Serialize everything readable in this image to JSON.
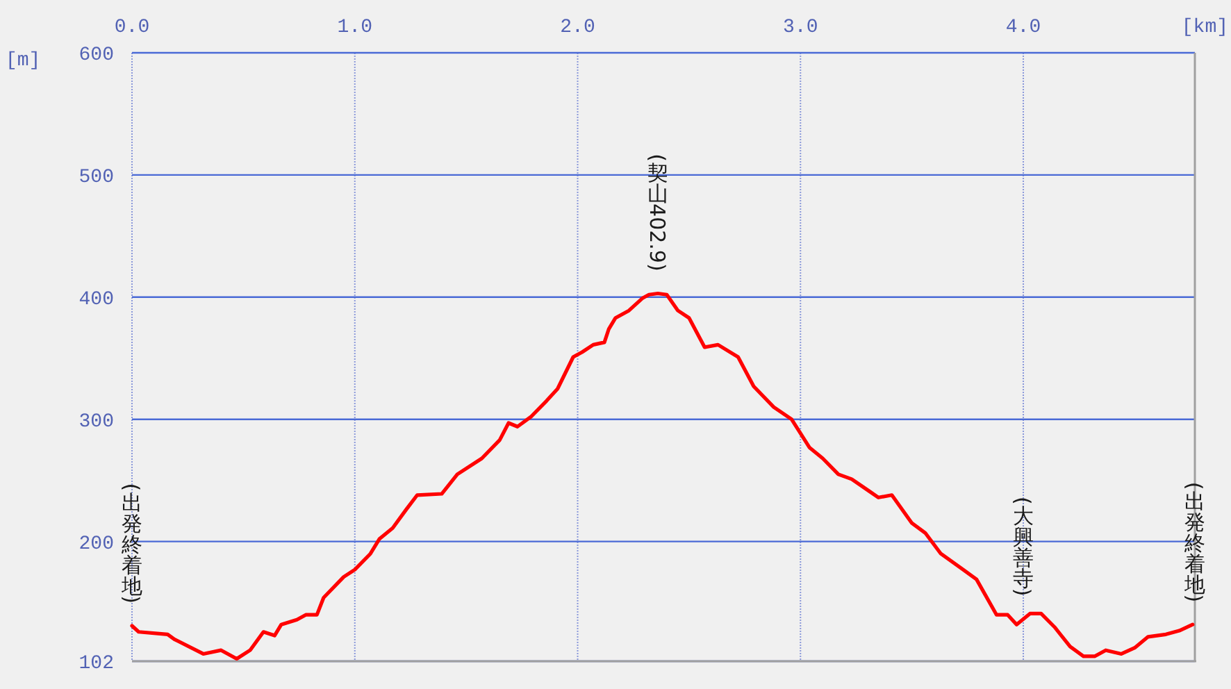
{
  "chart_data": {
    "type": "line",
    "xlabel": "[km]",
    "ylabel": "[m]",
    "x": [
      0.0,
      0.03,
      0.16,
      0.19,
      0.32,
      0.4,
      0.47,
      0.53,
      0.59,
      0.64,
      0.67,
      0.74,
      0.78,
      0.83,
      0.86,
      0.95,
      1.0,
      1.07,
      1.11,
      1.17,
      1.23,
      1.28,
      1.39,
      1.46,
      1.57,
      1.65,
      1.69,
      1.73,
      1.79,
      1.86,
      1.91,
      1.98,
      2.02,
      2.07,
      2.12,
      2.14,
      2.17,
      2.23,
      2.29,
      2.32,
      2.36,
      2.4,
      2.45,
      2.5,
      2.57,
      2.63,
      2.72,
      2.79,
      2.88,
      2.96,
      3.04,
      3.1,
      3.17,
      3.23,
      3.31,
      3.35,
      3.41,
      3.5,
      3.56,
      3.63,
      3.73,
      3.79,
      3.88,
      3.93,
      3.97,
      4.03,
      4.08,
      4.14,
      4.21,
      4.27,
      4.32,
      4.37,
      4.44,
      4.5,
      4.56,
      4.64,
      4.7,
      4.76
    ],
    "series": [
      {
        "color": "#ff0000",
        "values": [
          131,
          126,
          124,
          120,
          108,
          111,
          104,
          111,
          126,
          123,
          132,
          136,
          140,
          140,
          154,
          171,
          177,
          190,
          202,
          211,
          226,
          238,
          239,
          255,
          268,
          283,
          297,
          294,
          302,
          315,
          325,
          351,
          355,
          361,
          363,
          374,
          383,
          389,
          399,
          402,
          403,
          402,
          389,
          383,
          359,
          361,
          351,
          327,
          310,
          300,
          277,
          268,
          255,
          251,
          241,
          236,
          238,
          215,
          207,
          190,
          177,
          169,
          140,
          140,
          132,
          141,
          141,
          130,
          114,
          106,
          106,
          111,
          108,
          113,
          122,
          124,
          127,
          132
        ]
      }
    ],
    "xlim": [
      0,
      4.77
    ],
    "ylim": [
      102,
      600
    ],
    "xticks": [
      {
        "value": 0,
        "label": "0.0"
      },
      {
        "value": 1,
        "label": "1.0"
      },
      {
        "value": 2,
        "label": "2.0"
      },
      {
        "value": 3,
        "label": "3.0"
      },
      {
        "value": 4,
        "label": "4.0"
      }
    ],
    "yticks": [
      102,
      200,
      300,
      400,
      500,
      600
    ],
    "grid": true,
    "line_style": "solid",
    "annotations": [
      {
        "text": "(出発終着地)",
        "x": 0,
        "y": 131
      },
      {
        "text": "(契山402.9)",
        "x": 2.36,
        "y": 402.9
      },
      {
        "text": "(大興善寺)",
        "x": 4.0,
        "y": 137
      },
      {
        "text": "(出発終着地)",
        "x": 4.77,
        "y": 132
      }
    ]
  }
}
